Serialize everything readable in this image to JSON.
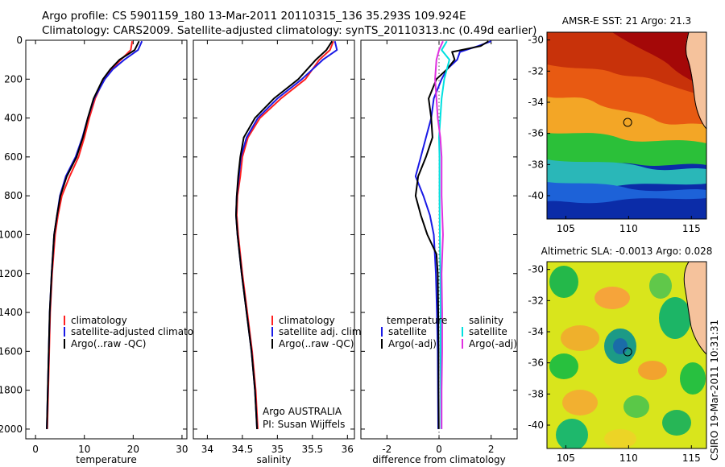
{
  "header": {
    "line1": "Argo profile: CS 5901159_180 13-Mar-2011 20110315_136 35.293S 109.924E",
    "line2": "Climatology: CARS2009. Satellite-adjusted climatology: synTS_20110313.nc (0.49d earlier)"
  },
  "side_label": "CSIRO 19-Mar-2011 10:31:31",
  "colors": {
    "climatology": "#ff2020",
    "satellite": "#1a1ae6",
    "argo": "#000000",
    "sal_satellite": "#00e0e0",
    "sal_argo": "#e030e0",
    "axis": "#000000",
    "zero_line": "#555555"
  },
  "chart_data": [
    {
      "id": "temperature",
      "type": "line",
      "xlabel": "temperature",
      "xlim": [
        -2,
        31
      ],
      "ylim": [
        2050,
        0
      ],
      "xticks": [
        0,
        10,
        20,
        30
      ],
      "yticks": [
        0,
        200,
        400,
        600,
        800,
        1000,
        1200,
        1400,
        1600,
        1800,
        2000
      ],
      "legend": {
        "placement": "lower-right",
        "entries": [
          "climatology",
          "satellite-adjusted climatology",
          "Argo(..raw -QC)"
        ]
      },
      "series": [
        {
          "name": "climatology",
          "color_key": "climatology",
          "depth": [
            5,
            50,
            100,
            150,
            200,
            300,
            400,
            500,
            600,
            700,
            800,
            900,
            1000,
            1200,
            1400,
            1600,
            1800,
            2000
          ],
          "values": [
            19.8,
            19.5,
            17.5,
            15.5,
            14.0,
            12.2,
            11.0,
            10.0,
            8.8,
            7.0,
            5.4,
            4.6,
            4.0,
            3.4,
            3.0,
            2.8,
            2.6,
            2.4
          ]
        },
        {
          "name": "satellite-adjusted climatology",
          "color_key": "satellite",
          "depth": [
            5,
            50,
            100,
            150,
            200,
            300,
            400,
            500,
            600,
            700,
            800,
            900,
            1000,
            1200,
            1400,
            1600,
            1800,
            2000
          ],
          "values": [
            21.8,
            21.0,
            18.2,
            15.8,
            14.2,
            12.0,
            10.7,
            9.6,
            8.2,
            6.2,
            5.0,
            4.4,
            3.8,
            3.3,
            2.9,
            2.7,
            2.5,
            2.3
          ]
        },
        {
          "name": "Argo(..raw -QC)",
          "color_key": "argo",
          "depth": [
            5,
            50,
            100,
            150,
            200,
            300,
            400,
            500,
            600,
            700,
            800,
            900,
            1000,
            1200,
            1400,
            1600,
            1800,
            2000
          ],
          "values": [
            21.2,
            20.3,
            17.2,
            15.3,
            13.8,
            11.9,
            10.7,
            9.7,
            8.4,
            6.4,
            5.1,
            4.4,
            3.8,
            3.3,
            2.9,
            2.7,
            2.5,
            2.3
          ]
        }
      ],
      "annotations": []
    },
    {
      "id": "salinity",
      "type": "line",
      "xlabel": "salinity",
      "xlim": [
        33.8,
        36.1
      ],
      "ylim": [
        2050,
        0
      ],
      "xticks": [
        34,
        34.5,
        35,
        35.5,
        36
      ],
      "yticks": [],
      "legend": {
        "placement": "lower-right",
        "entries": [
          "climatology",
          "satellite adj. clim.",
          "Argo(..raw -QC)"
        ]
      },
      "series": [
        {
          "name": "climatology",
          "color_key": "climatology",
          "depth": [
            5,
            50,
            100,
            200,
            300,
            400,
            500,
            600,
            700,
            800,
            900,
            1000,
            1200,
            1400,
            1600,
            1800,
            2000
          ],
          "values": [
            35.8,
            35.75,
            35.6,
            35.4,
            35.05,
            34.75,
            34.58,
            34.5,
            34.47,
            34.43,
            34.42,
            34.44,
            34.5,
            34.57,
            34.64,
            34.69,
            34.72
          ]
        },
        {
          "name": "satellite adj. clim.",
          "color_key": "satellite",
          "depth": [
            5,
            50,
            100,
            200,
            300,
            400,
            500,
            600,
            700,
            800,
            900,
            1000,
            1200,
            1400,
            1600,
            1800,
            2000
          ],
          "values": [
            35.82,
            35.85,
            35.65,
            35.35,
            35.0,
            34.72,
            34.56,
            34.48,
            34.45,
            34.42,
            34.41,
            34.43,
            34.49,
            34.56,
            34.63,
            34.68,
            34.71
          ]
        },
        {
          "name": "Argo(..raw -QC)",
          "color_key": "argo",
          "depth": [
            5,
            50,
            100,
            200,
            300,
            400,
            500,
            600,
            700,
            800,
            900,
            1000,
            1200,
            1400,
            1600,
            1800,
            2000
          ],
          "values": [
            35.78,
            35.7,
            35.55,
            35.3,
            34.95,
            34.68,
            34.52,
            34.47,
            34.44,
            34.42,
            34.41,
            34.43,
            34.49,
            34.56,
            34.63,
            34.68,
            34.71
          ]
        }
      ],
      "annotations": [
        "Argo AUSTRALIA",
        "PI: Susan Wijffels"
      ]
    },
    {
      "id": "difference",
      "type": "line",
      "xlabel": "difference from climatology",
      "xlim": [
        -3,
        3
      ],
      "ylim": [
        2050,
        0
      ],
      "xticks": [
        -2,
        0,
        2
      ],
      "yticks": [],
      "legend": {
        "placement": "lower-center",
        "groups": [
          {
            "title": "temperature",
            "entries": [
              "satellite",
              "Argo(-adj)"
            ]
          },
          {
            "title": "salinity",
            "entries": [
              "satellite",
              "Argo(-adj)"
            ]
          }
        ]
      },
      "series": [
        {
          "name": "temperature satellite",
          "color_key": "satellite",
          "depth": [
            5,
            30,
            60,
            100,
            150,
            200,
            300,
            400,
            500,
            600,
            700,
            800,
            900,
            1000,
            1200,
            1400,
            1600,
            1800,
            2000
          ],
          "values": [
            2.0,
            1.5,
            0.8,
            0.7,
            0.3,
            0.1,
            -0.2,
            -0.3,
            -0.5,
            -0.7,
            -0.9,
            -0.6,
            -0.35,
            -0.2,
            -0.12,
            -0.08,
            -0.05,
            -0.04,
            -0.03
          ]
        },
        {
          "name": "temperature Argo(-adj)",
          "color_key": "argo",
          "depth": [
            5,
            30,
            60,
            100,
            150,
            200,
            300,
            400,
            500,
            600,
            700,
            800,
            900,
            1000,
            1100,
            1200,
            1400,
            1600,
            1800,
            2000
          ],
          "values": [
            1.9,
            1.6,
            0.5,
            0.6,
            0.3,
            -0.1,
            -0.4,
            -0.3,
            -0.25,
            -0.5,
            -0.8,
            -0.9,
            -0.7,
            -0.45,
            -0.1,
            -0.05,
            -0.03,
            -0.02,
            -0.02,
            -0.01
          ]
        },
        {
          "name": "salinity satellite",
          "color_key": "sal_satellite",
          "depth": [
            5,
            50,
            100,
            200,
            300,
            400,
            500,
            600,
            800,
            1000,
            1200,
            1400,
            1600,
            1800,
            2000
          ],
          "values": [
            0.3,
            0.1,
            0.4,
            0.2,
            0.1,
            0.05,
            0.0,
            0.02,
            0.02,
            0.03,
            0.05,
            0.06,
            0.06,
            0.07,
            0.08
          ]
        },
        {
          "name": "salinity Argo(-adj)",
          "color_key": "sal_argo",
          "depth": [
            5,
            50,
            100,
            200,
            300,
            400,
            500,
            600,
            800,
            1000,
            1200,
            1400,
            1600,
            1800,
            2000
          ],
          "values": [
            0.15,
            0.0,
            -0.1,
            -0.15,
            -0.1,
            -0.05,
            0.05,
            0.1,
            0.1,
            0.15,
            0.1,
            0.12,
            0.12,
            0.1,
            0.1
          ]
        }
      ],
      "annotations": []
    }
  ],
  "maps": [
    {
      "id": "sst-map",
      "title": "AMSR-E SST: 21  Argo: 21.3",
      "xticks": [
        "105",
        "110",
        "115"
      ],
      "yticks": [
        "-30",
        "-32",
        "-34",
        "-36",
        "-38",
        "-40"
      ],
      "xlim": [
        103.5,
        116.2
      ],
      "ylim": [
        -41.5,
        -29.5
      ],
      "marker": {
        "lon": 109.924,
        "lat": -35.293
      }
    },
    {
      "id": "sla-map",
      "title": "Altimetric SLA: -0.0013  Argo: 0.028",
      "xticks": [
        "105",
        "110",
        "115"
      ],
      "yticks": [
        "-30",
        "-32",
        "-34",
        "-36",
        "-38",
        "-40"
      ],
      "xlim": [
        103.5,
        116.2
      ],
      "ylim": [
        -41.5,
        -29.5
      ],
      "marker": {
        "lon": 109.924,
        "lat": -35.293
      }
    }
  ]
}
